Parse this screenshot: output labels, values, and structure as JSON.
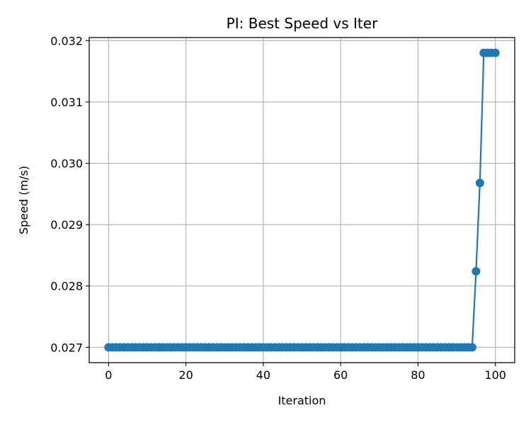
{
  "chart_data": {
    "type": "line",
    "title": "PI: Best Speed vs Iter",
    "xlabel": "Iteration",
    "ylabel": "Speed (m/s)",
    "xlim": [
      -5,
      105
    ],
    "ylim": [
      0.02675,
      0.03205
    ],
    "xticks": [
      0,
      20,
      40,
      60,
      80,
      100
    ],
    "xtick_labels": [
      "0",
      "20",
      "40",
      "60",
      "80",
      "100"
    ],
    "yticks": [
      0.027,
      0.028,
      0.029,
      0.03,
      0.031,
      0.032
    ],
    "ytick_labels": [
      "0.027",
      "0.028",
      "0.029",
      "0.030",
      "0.031",
      "0.032"
    ],
    "grid": true,
    "legend": "none",
    "line_color": "#1f77b4",
    "marker": "circle",
    "series": [
      {
        "x": [
          0,
          1,
          2,
          3,
          4,
          5,
          6,
          7,
          8,
          9,
          10,
          11,
          12,
          13,
          14,
          15,
          16,
          17,
          18,
          19,
          20,
          21,
          22,
          23,
          24,
          25,
          26,
          27,
          28,
          29,
          30,
          31,
          32,
          33,
          34,
          35,
          36,
          37,
          38,
          39,
          40,
          41,
          42,
          43,
          44,
          45,
          46,
          47,
          48,
          49,
          50,
          51,
          52,
          53,
          54,
          55,
          56,
          57,
          58,
          59,
          60,
          61,
          62,
          63,
          64,
          65,
          66,
          67,
          68,
          69,
          70,
          71,
          72,
          73,
          74,
          75,
          76,
          77,
          78,
          79,
          80,
          81,
          82,
          83,
          84,
          85,
          86,
          87,
          88,
          89,
          90,
          91,
          92,
          93,
          94,
          95,
          96,
          97,
          98,
          99,
          100
        ],
        "y": [
          0.027,
          0.027,
          0.027,
          0.027,
          0.027,
          0.027,
          0.027,
          0.027,
          0.027,
          0.027,
          0.027,
          0.027,
          0.027,
          0.027,
          0.027,
          0.027,
          0.027,
          0.027,
          0.027,
          0.027,
          0.027,
          0.027,
          0.027,
          0.027,
          0.027,
          0.027,
          0.027,
          0.027,
          0.027,
          0.027,
          0.027,
          0.027,
          0.027,
          0.027,
          0.027,
          0.027,
          0.027,
          0.027,
          0.027,
          0.027,
          0.027,
          0.027,
          0.027,
          0.027,
          0.027,
          0.027,
          0.027,
          0.027,
          0.027,
          0.027,
          0.027,
          0.027,
          0.027,
          0.027,
          0.027,
          0.027,
          0.027,
          0.027,
          0.027,
          0.027,
          0.027,
          0.027,
          0.027,
          0.027,
          0.027,
          0.027,
          0.027,
          0.027,
          0.027,
          0.027,
          0.027,
          0.027,
          0.027,
          0.027,
          0.027,
          0.027,
          0.027,
          0.027,
          0.027,
          0.027,
          0.027,
          0.027,
          0.027,
          0.027,
          0.027,
          0.027,
          0.027,
          0.027,
          0.027,
          0.027,
          0.027,
          0.027,
          0.027,
          0.027,
          0.027,
          0.02824,
          0.02968,
          0.0318,
          0.0318,
          0.0318,
          0.0318
        ]
      }
    ]
  }
}
